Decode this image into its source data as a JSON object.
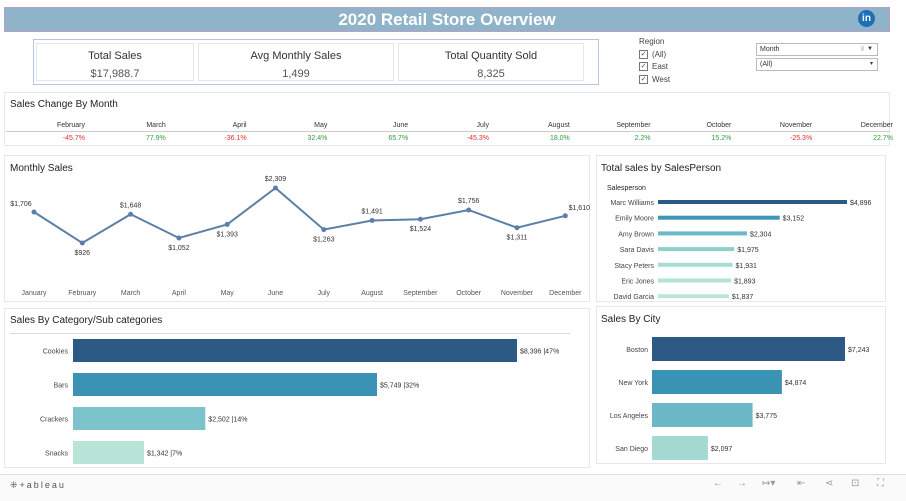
{
  "header": {
    "title": "2020 Retail Store Overview",
    "linkedin": "in"
  },
  "kpis": [
    {
      "label": "Total Sales",
      "value": "$17,988.7"
    },
    {
      "label": "Avg Monthly Sales",
      "value": "1,499"
    },
    {
      "label": "Total Quantity Sold",
      "value": "8,325"
    }
  ],
  "region_filter": {
    "title": "Region",
    "options": [
      {
        "label": "(All)",
        "checked": true
      },
      {
        "label": "East",
        "checked": true
      },
      {
        "label": "West",
        "checked": true
      }
    ]
  },
  "month_filter": {
    "title": "Month",
    "value": "(All)"
  },
  "sales_change": {
    "title": "Sales Change By Month",
    "months": [
      "February",
      "March",
      "April",
      "May",
      "June",
      "July",
      "August",
      "September",
      "October",
      "November",
      "December"
    ],
    "values": [
      "-45.7%",
      "77.9%",
      "-36.1%",
      "32.4%",
      "65.7%",
      "-45.3%",
      "18.0%",
      "2.2%",
      "15.2%",
      "-25.3%",
      "22.7%"
    ],
    "pos_color": "#2e9e3e",
    "neg_color": "#d9302f"
  },
  "monthly_sales": {
    "title": "Monthly Sales",
    "chart_data": {
      "type": "line",
      "title": "Monthly Sales",
      "x": [
        "January",
        "February",
        "March",
        "April",
        "May",
        "June",
        "July",
        "August",
        "September",
        "October",
        "November",
        "December"
      ],
      "values": [
        1706,
        926,
        1648,
        1052,
        1393,
        2309,
        1263,
        1491,
        1524,
        1756,
        1311,
        1610
      ],
      "labels": [
        "$1,706",
        "$926",
        "$1,648",
        "$1,052",
        "$1,393",
        "$2,309",
        "$1,263",
        "$1,491",
        "$1,524",
        "$1,756",
        "$1,311",
        "$1,610"
      ],
      "color": "#5b7fa6"
    }
  },
  "salesperson": {
    "title": "Total sales by SalesPerson",
    "header": "Salesperson",
    "chart_data": {
      "type": "bar",
      "categories": [
        "Marc Williams",
        "Emily Moore",
        "Amy Brown",
        "Sara Davis",
        "Stacy Peters",
        "Eric Jones",
        "David Garcia"
      ],
      "values": [
        4896,
        3152,
        2304,
        1975,
        1931,
        1893,
        1837
      ],
      "labels": [
        "$4,896",
        "$3,152",
        "$2,304",
        "$1,975",
        "$1,931",
        "$1,893",
        "$1,837"
      ],
      "colors": [
        "#2c5a85",
        "#3f95b5",
        "#6ab8c8",
        "#8dd0cc",
        "#a6dcd2",
        "#b3e2d6",
        "#bde6da"
      ]
    }
  },
  "category": {
    "title": "Sales By Category/Sub categories",
    "chart_data": {
      "type": "bar",
      "categories": [
        "Cookies",
        "Bars",
        "Crackers",
        "Snacks"
      ],
      "values": [
        8396,
        5749,
        2502,
        1342
      ],
      "labels": [
        "$8,396 |47%",
        "$5,749 |32%",
        "$2,502 |14%",
        "$1,342 |7%"
      ],
      "colors": [
        "#2c5a85",
        "#3a93b4",
        "#7cc3cb",
        "#b8e3d7"
      ]
    }
  },
  "city": {
    "title": "Sales By City",
    "chart_data": {
      "type": "bar",
      "categories": [
        "Boston",
        "New York",
        "Los Angeles",
        "San Diego"
      ],
      "values": [
        7243,
        4874,
        3775,
        2097
      ],
      "labels": [
        "$7,243",
        "$4,874",
        "$3,775",
        "$2,097"
      ],
      "colors": [
        "#2c5a85",
        "#3a93b4",
        "#6cb8c6",
        "#a5d8d1"
      ]
    }
  },
  "footer": {
    "logo": "+ableau",
    "icons": [
      "undo-icon",
      "redo-icon",
      "revert-icon",
      "back-icon",
      "share-icon",
      "comment-icon",
      "fullscreen-icon"
    ]
  }
}
